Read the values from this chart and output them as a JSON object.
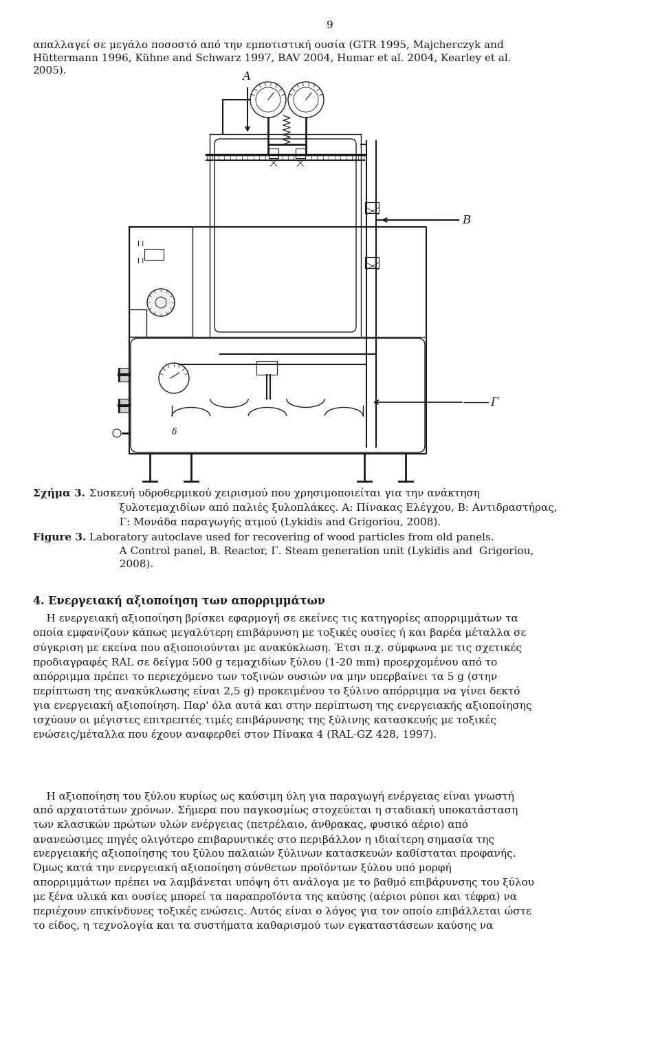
{
  "page_number": "9",
  "bg_color": "#ffffff",
  "text_color": "#1a1a1a",
  "figsize": [
    9.6,
    15.17
  ],
  "dpi": 100,
  "top_paragraph": "απαλλαγεί σε μεγάλο ποσοστό από την εμποτιστική ουσία (GTR 1995, Majcherczyk and\nHüttermann 1996, Kühne and Schwarz 1997, BAV 2004, Humar et al. 2004, Kearley et al.\n2005).",
  "greek_caption_bold": "Σχήμα 3.",
  "greek_caption_rest": "  Συσκευή υδροθερμικού χειρισμού που χρησιμοποιείται για την ανάκτηση\n           ξυλοτεμαχιδίων από παλιές ξυλοπλάκες. Α: Πίνακας Ελέγχου, Β: Αντιδραστήρας,\n           Γ: Μονάδα παραγωγής ατμού (Lykidis and Grigoriou, 2008).",
  "figure_label_bold": "Figure 3.",
  "figure_caption_rest": "  Laboratory autoclave used for recovering of wood particles from old panels.\n           A Control panel, B. Reactor, Γ. Steam generation unit (Lykidis and  Grigoriou,\n           2008).",
  "section4_heading": "4. Ενεργειακή αξιοποίηση των απορριμμάτων",
  "section4_p1": "    Η ενεργειακή αξιοποίηση βρίσκει εφαρμογή σε εκείνες τις κατηγορίες απορριμμάτων τα\nοποία εμφανίζουν κάπως μεγαλύτερη επιβάρυνση με τοξικές ουσίες ή και βαρέα μέταλλα σε\nσύγκριση με εκείνα που αξιοποιούνται με ανακύκλωση. Έτσι π.χ. σύμφωνα με τις σχετικές\nπροδιαγραφές RAL σε δείγμα 500 g τεμαχιδίων ξύλου (1-20 mm) προερχομένου από το\nαπόρριμμα πρέπει το περιεχόμενο των τοξινών ουσιών να μην υπερβαίνει τα 5 g (στην\nπερίπτωση της ανακύκλωσης είναι 2,5 g) προκειμένου το ξύλινο απόρριμμα να γίνει δεκτό\nγια ενεργειακή αξιοποίηση. Παρ' όλα αυτά και στην περίπτωση της ενεργειακής αξιοποίησης\nισχύουν οι μέγιστες επιτρεπτές τιμές επιβάρυνσης της ξύλινης κατασκευής με τοξικές\nενώσεις/μέταλλα που έχουν αναφερθεί στον Πίνακα 4 (RAL-GZ 428, 1997).",
  "section4_p2": "    Η αξιοποίηση του ξύλου κυρίως ως καύσιμη ύλη για παραγωγή ενέργειας είναι γνωστή\nαπό αρχαιοτάτων χρόνων. Σήμερα που παγκοσμίως στοχεύεται η σταδιακή υποκατάσταση\nτων κλασικών πρώτων υλών ενέργειας (πετρέλαιο, άνθρακας, φυσικό αέριο) από\nανανεώσιμες πηγές ολιγότερο επιβαρυντικές στο περιβάλλον η ιδιαίτερη σημασία της\nενεργειακής αξιοποίησης του ξύλου παλαιών ξύλινων κατασκευών καθίσταται προφανής.\nΌμως κατά την ενεργειακή αξιοποίηση σύνθετων προϊόντων ξύλου υπό μορφή\nαπορριμμάτων πρέπει να λαμβάνεται υπόψη ότι ανάλογα με το βαθμό επιβάρυνσης του ξύλου\nμε ξένα υλικά και ουσίες μπορεί τα παραπροϊόντα της καύσης (αέριοι ρύποι και τέφρα) να\nπεριέχουν επικίνδυνες τοξικές ενώσεις. Αυτός είναι ο λόγος για τον οποίο επιβάλλεται ώστε\nτο είδος, η τεχνολογία και τα συστήματα καθαρισμού των εγκαταστάσεων καύσης να"
}
